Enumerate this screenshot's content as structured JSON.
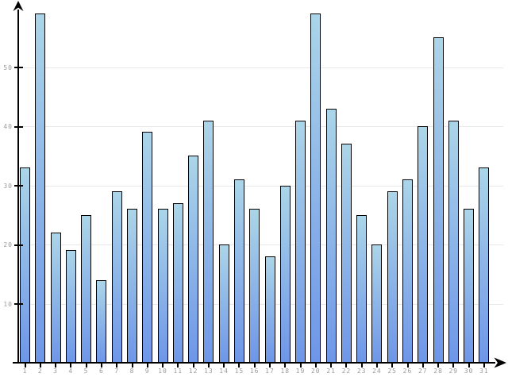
{
  "chart_data": {
    "type": "bar",
    "title": "",
    "xlabel": "",
    "ylabel": "",
    "categories": [
      "1",
      "2",
      "3",
      "4",
      "5",
      "6",
      "7",
      "8",
      "9",
      "10",
      "11",
      "12",
      "13",
      "14",
      "15",
      "16",
      "17",
      "18",
      "19",
      "20",
      "21",
      "22",
      "23",
      "24",
      "25",
      "26",
      "27",
      "28",
      "29",
      "30",
      "31"
    ],
    "values": [
      33,
      59,
      22,
      19,
      25,
      14,
      29,
      26,
      39,
      26,
      27,
      35,
      41,
      20,
      31,
      26,
      18,
      30,
      41,
      59,
      43,
      37,
      25,
      20,
      29,
      31,
      40,
      55,
      41,
      26,
      33
    ],
    "ylim": [
      0,
      60
    ],
    "yticks": [
      10,
      20,
      30,
      40,
      50
    ],
    "ytick_labels": [
      "10",
      "20",
      "30",
      "40",
      "50"
    ],
    "grid": true,
    "legend": "none",
    "bar_color_top": "#abd5e8",
    "bar_color_bottom": "#6e96e8"
  },
  "style": {
    "background": "#ffffff",
    "axis_color": "#000000",
    "bar_border_color": "#000000",
    "grid_color": "#e8e8e8",
    "tick_label_color": "#9a9a9a"
  }
}
